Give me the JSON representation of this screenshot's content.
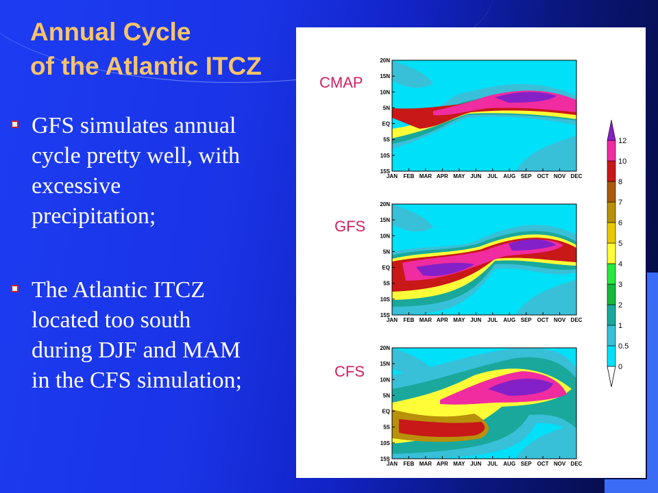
{
  "slide": {
    "title_lines": [
      "Annual Cycle",
      "of the Atlantic ITCZ"
    ],
    "bullets": [
      {
        "lines": [
          "GFS simulates annual",
          "cycle pretty well, with",
          "excessive",
          "precipitation;"
        ]
      },
      {
        "lines": [
          "The Atlantic ITCZ",
          "located too south",
          "during DJF and MAM",
          "in the CFS simulation;"
        ]
      }
    ]
  },
  "figure": {
    "panels": [
      {
        "label": "CMAP"
      },
      {
        "label": "GFS"
      },
      {
        "label": "CFS"
      }
    ],
    "months": [
      "JAN",
      "FEB",
      "MAR",
      "APR",
      "MAY",
      "JUN",
      "JUL",
      "AUG",
      "SEP",
      "OCT",
      "NOV",
      "DEC"
    ],
    "latitudes": [
      "20N",
      "15N",
      "10N",
      "5N",
      "EQ",
      "5S",
      "10S",
      "15S"
    ],
    "colorbar": {
      "levels": [
        "0",
        "0.5",
        "1",
        "2",
        "3",
        "4",
        "5",
        "6",
        "7",
        "8",
        "10",
        "12"
      ],
      "colors": [
        "#00e0f8",
        "#38c0d8",
        "#1aa89c",
        "#14b83a",
        "#28e840",
        "#fffd38",
        "#e8c800",
        "#b8900a",
        "#a85a10",
        "#c81818",
        "#f02ca0",
        "#c030e0",
        "#8420c8"
      ]
    }
  }
}
